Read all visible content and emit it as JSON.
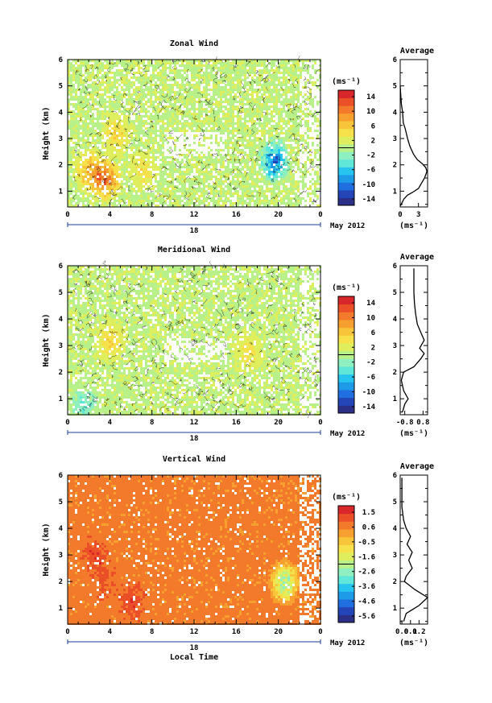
{
  "chart_data": [
    {
      "type": "heatmap",
      "title": "Zonal Wind",
      "ylabel": "Height (km)",
      "x_ticks": [
        "0",
        "4",
        "8",
        "12",
        "16",
        "20",
        "0"
      ],
      "xlim": [
        0,
        24
      ],
      "y_ticks": [
        "1",
        "2",
        "3",
        "4",
        "5",
        "6"
      ],
      "ylim": [
        0.4,
        6
      ],
      "date_label": "18",
      "month_label": "May 2012",
      "colorbar": {
        "unit": "(ms⁻¹)",
        "ticks": [
          "14",
          "10",
          "6",
          "2",
          "-2",
          "-6",
          "-10",
          "-14"
        ],
        "range": [
          -16,
          16
        ]
      },
      "average": {
        "title": "Average",
        "xlabel": "(ms⁻¹)",
        "x_ticks": [
          "0",
          "3"
        ],
        "xlim": [
          0,
          4.5
        ],
        "y_ticks": [
          "1",
          "2",
          "3",
          "4",
          "5",
          "6"
        ],
        "profile": [
          [
            0.05,
            0.45
          ],
          [
            0.6,
            0.7
          ],
          [
            1.2,
            0.85
          ],
          [
            2.0,
            0.95
          ],
          [
            3.0,
            1.1
          ],
          [
            3.5,
            1.3
          ],
          [
            4.0,
            1.5
          ],
          [
            4.4,
            1.75
          ],
          [
            4.2,
            1.9
          ],
          [
            3.6,
            2.05
          ],
          [
            2.8,
            2.2
          ],
          [
            2.2,
            2.4
          ],
          [
            1.6,
            2.7
          ],
          [
            1.2,
            3.0
          ],
          [
            1.0,
            3.2
          ],
          [
            0.8,
            3.4
          ],
          [
            0.5,
            3.6
          ],
          [
            0.4,
            4.0
          ],
          [
            0.2,
            4.3
          ],
          [
            0.1,
            4.6
          ],
          [
            0.05,
            4.8
          ],
          [
            0.0,
            5.0
          ]
        ]
      },
      "field_anomalies": [
        {
          "t": 3.5,
          "h": 1.5,
          "v": 13
        },
        {
          "t": 2.0,
          "h": 1.8,
          "v": 9
        },
        {
          "t": 4.5,
          "h": 3.2,
          "v": 6
        },
        {
          "t": 7.0,
          "h": 1.8,
          "v": 5
        },
        {
          "t": 19.5,
          "h": 2.2,
          "v": -12
        }
      ]
    },
    {
      "type": "heatmap",
      "title": "Meridional Wind",
      "ylabel": "Height (km)",
      "x_ticks": [
        "0",
        "4",
        "8",
        "12",
        "16",
        "20",
        "0"
      ],
      "xlim": [
        0,
        24
      ],
      "y_ticks": [
        "1",
        "2",
        "3",
        "4",
        "5",
        "6"
      ],
      "ylim": [
        0.4,
        6
      ],
      "date_label": "18",
      "month_label": "May 2012",
      "colorbar": {
        "unit": "(ms⁻¹)",
        "ticks": [
          "14",
          "10",
          "6",
          "2",
          "-2",
          "-6",
          "-10",
          "-14"
        ],
        "range": [
          -16,
          16
        ]
      },
      "average": {
        "title": "Average",
        "xlabel": "(ms⁻¹)",
        "x_ticks": [
          "-0.8",
          "0.8"
        ],
        "xlim": [
          -1.2,
          1.2
        ],
        "y_ticks": [
          "1",
          "2",
          "3",
          "4",
          "5",
          "6"
        ],
        "profile": [
          [
            -1.0,
            0.5
          ],
          [
            -0.8,
            0.8
          ],
          [
            -0.5,
            1.0
          ],
          [
            -0.9,
            1.3
          ],
          [
            -1.1,
            1.7
          ],
          [
            -0.9,
            2.0
          ],
          [
            0.0,
            2.2
          ],
          [
            0.6,
            2.5
          ],
          [
            0.9,
            2.7
          ],
          [
            0.5,
            2.9
          ],
          [
            0.9,
            3.2
          ],
          [
            0.6,
            3.5
          ],
          [
            0.3,
            3.8
          ],
          [
            0.15,
            4.2
          ],
          [
            0.05,
            4.6
          ],
          [
            0.0,
            5.0
          ],
          [
            0.0,
            5.5
          ],
          [
            0.0,
            5.9
          ]
        ]
      },
      "field_anomalies": [
        {
          "t": 1.5,
          "h": 0.8,
          "v": -4
        },
        {
          "t": 4.0,
          "h": 3.2,
          "v": 6
        },
        {
          "t": 17.0,
          "h": 2.8,
          "v": 5
        }
      ]
    },
    {
      "type": "heatmap",
      "title": "Vertical Wind",
      "ylabel": "Height (km)",
      "xlabel": "Local Time",
      "x_ticks": [
        "0",
        "4",
        "8",
        "12",
        "16",
        "20",
        "0"
      ],
      "xlim": [
        0,
        24
      ],
      "y_ticks": [
        "1",
        "2",
        "3",
        "4",
        "5",
        "6"
      ],
      "ylim": [
        0.4,
        6
      ],
      "date_label": "18",
      "month_label": "May 2012",
      "colorbar": {
        "unit": "(ms⁻¹)",
        "ticks": [
          "1.5",
          "0.6",
          "-0.5",
          "-1.6",
          "-2.6",
          "-3.6",
          "-4.6",
          "-5.6"
        ],
        "range": [
          -6,
          2
        ]
      },
      "average": {
        "title": "Average",
        "xlabel": "(ms⁻¹)",
        "x_ticks": [
          "0.0",
          "0.1",
          "0.2"
        ],
        "xlim": [
          -0.02,
          0.3
        ],
        "y_ticks": [
          "1",
          "2",
          "3",
          "4",
          "5",
          "6"
        ],
        "profile": [
          [
            0.02,
            0.5
          ],
          [
            0.05,
            0.8
          ],
          [
            0.2,
            1.1
          ],
          [
            0.3,
            1.4
          ],
          [
            0.15,
            1.7
          ],
          [
            0.03,
            2.0
          ],
          [
            0.05,
            2.2
          ],
          [
            0.12,
            2.5
          ],
          [
            0.08,
            2.8
          ],
          [
            0.12,
            3.1
          ],
          [
            0.06,
            3.4
          ],
          [
            0.1,
            3.7
          ],
          [
            0.05,
            4.0
          ],
          [
            0.02,
            4.3
          ],
          [
            0.0,
            4.8
          ],
          [
            0.0,
            5.3
          ],
          [
            0.0,
            5.9
          ]
        ]
      },
      "field_anomalies": [
        {
          "t": 2.5,
          "h": 3.0,
          "v": 1.6
        },
        {
          "t": 3.5,
          "h": 2.0,
          "v": 1.2
        },
        {
          "t": 6.0,
          "h": 1.3,
          "v": 1.5
        },
        {
          "t": 20.5,
          "h": 2.0,
          "v": -3.0
        }
      ]
    }
  ]
}
